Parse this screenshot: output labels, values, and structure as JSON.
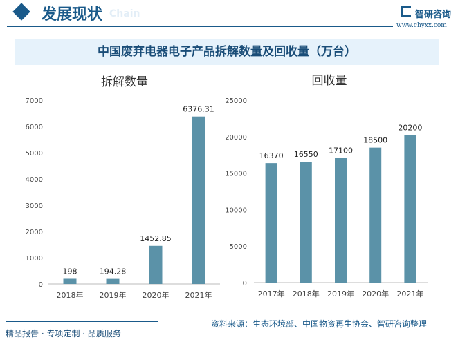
{
  "header": {
    "title": "发展现状",
    "subtitle_en": "Chain",
    "logo_name": "智研咨询",
    "logo_url": "www.chyxx.com"
  },
  "title": "中国废弃电器电子产品拆解数量及回收量（万台）",
  "footer": {
    "left": "精品报告 · 专项定制 · 品质服务",
    "source": "资料来源：生态环境部、中国物资再生协会、智研咨询整理"
  },
  "colors": {
    "bar": "#5b92a8",
    "accent": "#1a5a8a"
  },
  "chart_data": [
    {
      "type": "bar",
      "title": "拆解数量",
      "categories": [
        "2018年",
        "2019年",
        "2020年",
        "2021年"
      ],
      "values": [
        198,
        194.28,
        1452.85,
        6376.31
      ],
      "labels": [
        "198",
        "194.28",
        "1452.85",
        "6376.31"
      ],
      "ylim": [
        0,
        7000
      ],
      "yticks": [
        0,
        1000,
        2000,
        3000,
        4000,
        5000,
        6000,
        7000
      ],
      "grid": false
    },
    {
      "type": "bar",
      "title": "回收量",
      "categories": [
        "2017年",
        "2018年",
        "2019年",
        "2020年",
        "2021年"
      ],
      "values": [
        16370,
        16550,
        17100,
        18500,
        20200
      ],
      "labels": [
        "16370",
        "16550",
        "17100",
        "18500",
        "20200"
      ],
      "ylim": [
        0,
        25000
      ],
      "yticks": [
        0,
        5000,
        10000,
        15000,
        20000,
        25000
      ],
      "grid": false
    }
  ]
}
